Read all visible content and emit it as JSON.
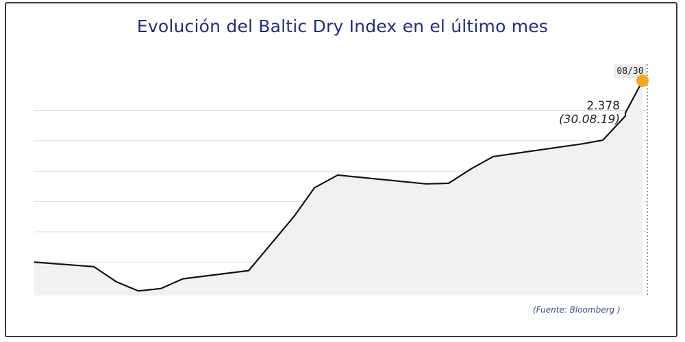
{
  "title": "Evolución del Baltic Dry Index en el último mes",
  "source": "(Fuente: Bloomberg )",
  "colors": {
    "title": "#1f2f7a",
    "line": "#111111",
    "area": "#f1f1f1",
    "grid": "#dddddd",
    "marker": "#f5a623",
    "source": "#3b4d8f"
  },
  "chart_data": {
    "type": "area",
    "title": "Evolución del Baltic Dry Index en el último mes",
    "xlabel": "",
    "ylabel": "",
    "grid": true,
    "x_tick_label": "08/30",
    "values": [
      1780,
      1765,
      1715,
      1685,
      1693,
      1725,
      1752,
      1930,
      2025,
      2067,
      2038,
      2040,
      2088,
      2128,
      2170,
      2182,
      2262,
      2272,
      2378
    ],
    "ylim": [
      1670,
      2430
    ],
    "gridlines": [
      1780,
      1880,
      1980,
      2080,
      2180,
      2280
    ],
    "highlight": {
      "value_label": "2.378",
      "date_label": "(30.08.19)"
    }
  }
}
